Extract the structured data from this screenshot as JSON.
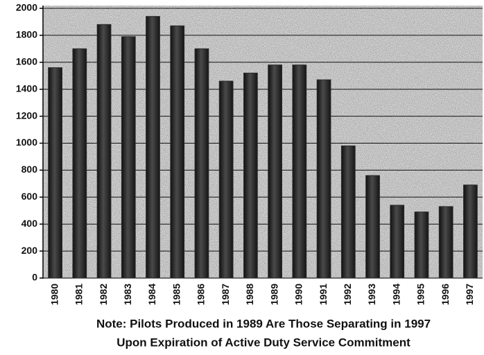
{
  "chart_data": {
    "type": "bar",
    "categories": [
      "1980",
      "1981",
      "1982",
      "1983",
      "1984",
      "1985",
      "1986",
      "1987",
      "1988",
      "1989",
      "1990",
      "1991",
      "1992",
      "1993",
      "1994",
      "1995",
      "1996",
      "1997"
    ],
    "values": [
      1560,
      1700,
      1880,
      1790,
      1940,
      1870,
      1700,
      1460,
      1520,
      1580,
      1580,
      1470,
      980,
      760,
      540,
      490,
      530,
      690
    ],
    "color": "#2a2a2a",
    "ylim": [
      0,
      2000
    ],
    "yticks": [
      0,
      200,
      400,
      600,
      800,
      1000,
      1200,
      1400,
      1600,
      1800,
      2000
    ],
    "grid": true,
    "annotations": [
      "Note:  Pilots Produced in 1989 Are Those Separating in 1997",
      "Upon Expiration of Active Duty Service Commitment"
    ]
  }
}
